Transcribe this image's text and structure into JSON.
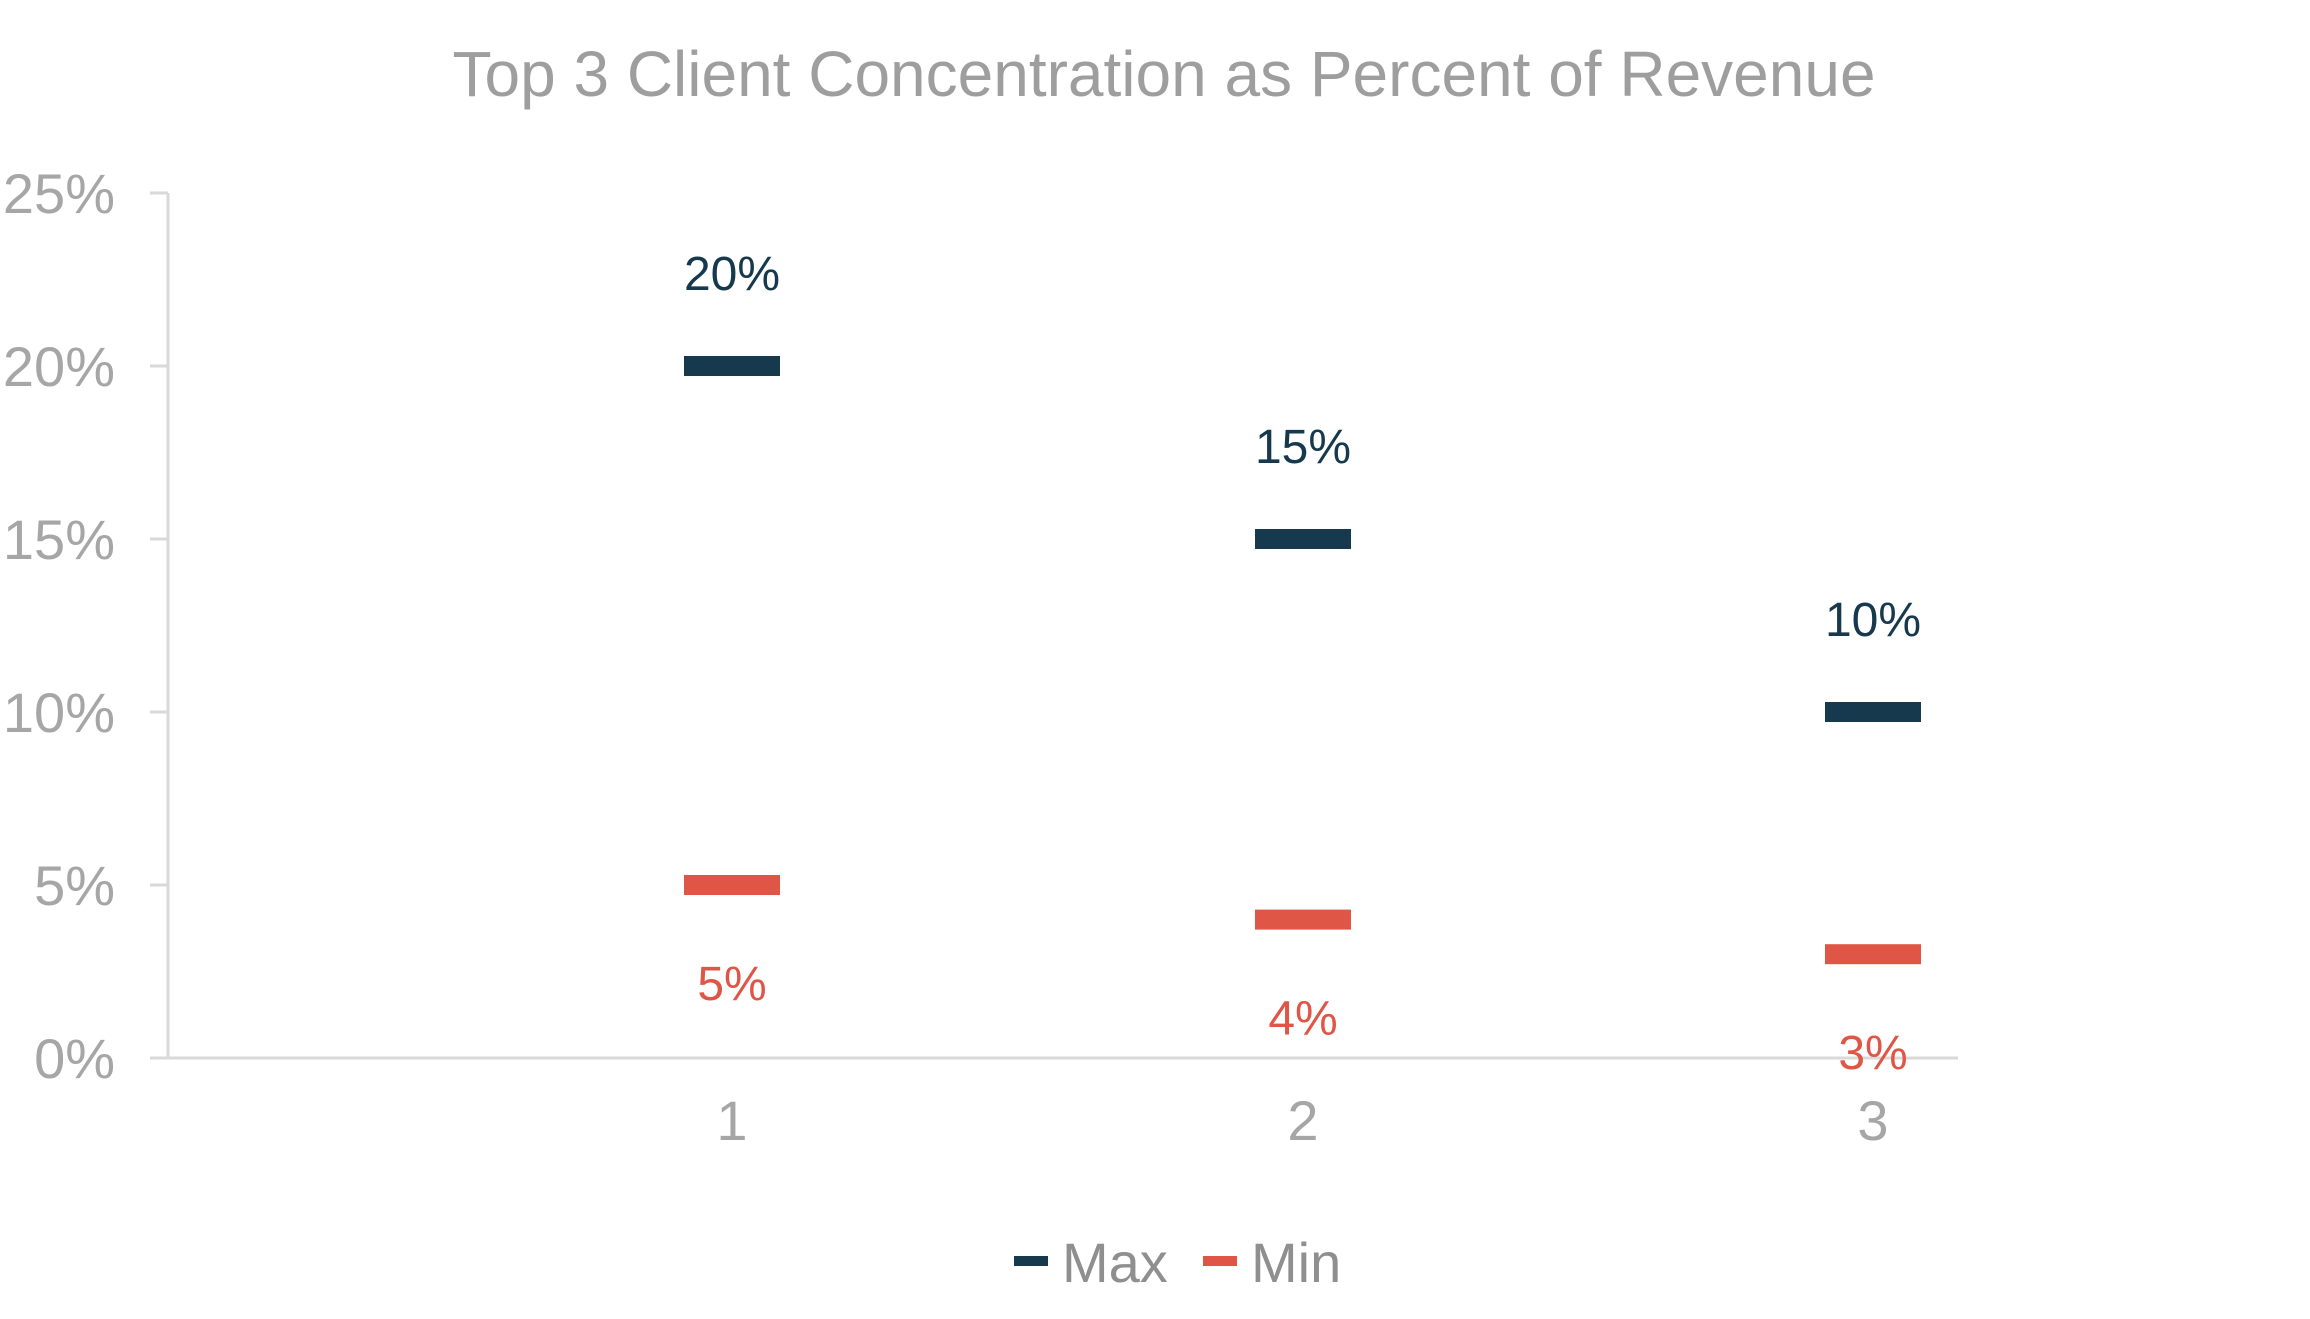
{
  "chart_data": {
    "type": "line",
    "title": "Top 3 Client Concentration as Percent of Revenue",
    "xlabel": "",
    "ylabel": "",
    "categories": [
      "1",
      "2",
      "3"
    ],
    "ylim": [
      0,
      25
    ],
    "yticks": [
      0,
      5,
      10,
      15,
      20,
      25
    ],
    "ytick_labels": [
      "0%",
      "5%",
      "10%",
      "15%",
      "20%",
      "25%"
    ],
    "grid": false,
    "legend_position": "bottom",
    "series": [
      {
        "name": "Max",
        "color": "#17394d",
        "values": [
          20,
          15,
          10
        ],
        "labels": [
          "20%",
          "15%",
          "10%"
        ],
        "label_position": "above"
      },
      {
        "name": "Min",
        "color": "#e05646",
        "values": [
          5,
          4,
          3
        ],
        "labels": [
          "5%",
          "4%",
          "3%"
        ],
        "label_position": "below"
      }
    ]
  }
}
